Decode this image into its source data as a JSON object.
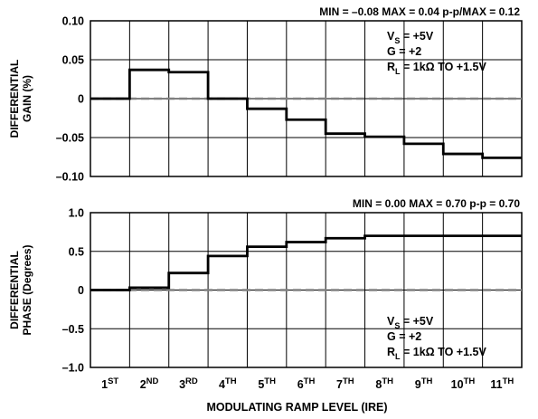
{
  "chart_data": [
    {
      "type": "line",
      "step": true,
      "stats": "MIN = –0.08   MAX = 0.04   p-p/MAX = 0.12",
      "ylabel_lines": [
        "DIFFERENTIAL",
        "GAIN (%)"
      ],
      "ylim": [
        -0.1,
        0.1
      ],
      "yticks": [
        0.1,
        0.05,
        0,
        -0.05,
        -0.1
      ],
      "ytick_labels": [
        "0.10",
        "0.05",
        "0",
        "–0.05",
        "–0.10"
      ],
      "xlim": [
        0,
        11
      ],
      "grid": true,
      "zero_line": "dashed",
      "annotation_position": "top-right",
      "annotations": [
        {
          "main": "V",
          "sub": "S",
          "rest": " = +5V"
        },
        {
          "main": "G = +2",
          "sub": "",
          "rest": ""
        },
        {
          "main": "R",
          "sub": "L",
          "rest": " = 1kΩ TO +1.5V"
        }
      ],
      "values": [
        0.0,
        0.037,
        0.034,
        0.0,
        -0.013,
        -0.027,
        -0.045,
        -0.049,
        -0.058,
        -0.071,
        -0.076
      ]
    },
    {
      "type": "line",
      "step": true,
      "stats": "MIN = 0.00   MAX = 0.70   p-p = 0.70",
      "ylabel_lines": [
        "DIFFERENTIAL",
        "PHASE (Degrees)"
      ],
      "ylim": [
        -1.0,
        1.0
      ],
      "yticks": [
        1.0,
        0.5,
        0,
        -0.5,
        -1.0
      ],
      "ytick_labels": [
        "1.0",
        "0.5",
        "0",
        "–0.5",
        "–1.0"
      ],
      "xlim": [
        0,
        11
      ],
      "grid": true,
      "zero_line": "dashed",
      "annotation_position": "bottom-right",
      "annotations": [
        {
          "main": "V",
          "sub": "S",
          "rest": " = +5V"
        },
        {
          "main": "G = +2",
          "sub": "",
          "rest": ""
        },
        {
          "main": "R",
          "sub": "L",
          "rest": " = 1kΩ TO +1.5V"
        }
      ],
      "values": [
        0.0,
        0.03,
        0.22,
        0.44,
        0.56,
        0.62,
        0.67,
        0.7,
        0.7,
        0.7,
        0.7
      ]
    }
  ],
  "x_categories": [
    {
      "num": "1",
      "sup": "ST"
    },
    {
      "num": "2",
      "sup": "ND"
    },
    {
      "num": "3",
      "sup": "RD"
    },
    {
      "num": "4",
      "sup": "TH"
    },
    {
      "num": "5",
      "sup": "TH"
    },
    {
      "num": "6",
      "sup": "TH"
    },
    {
      "num": "7",
      "sup": "TH"
    },
    {
      "num": "8",
      "sup": "TH"
    },
    {
      "num": "9",
      "sup": "TH"
    },
    {
      "num": "10",
      "sup": "TH"
    },
    {
      "num": "11",
      "sup": "TH"
    }
  ],
  "xlabel": "MODULATING RAMP LEVEL (IRE)"
}
